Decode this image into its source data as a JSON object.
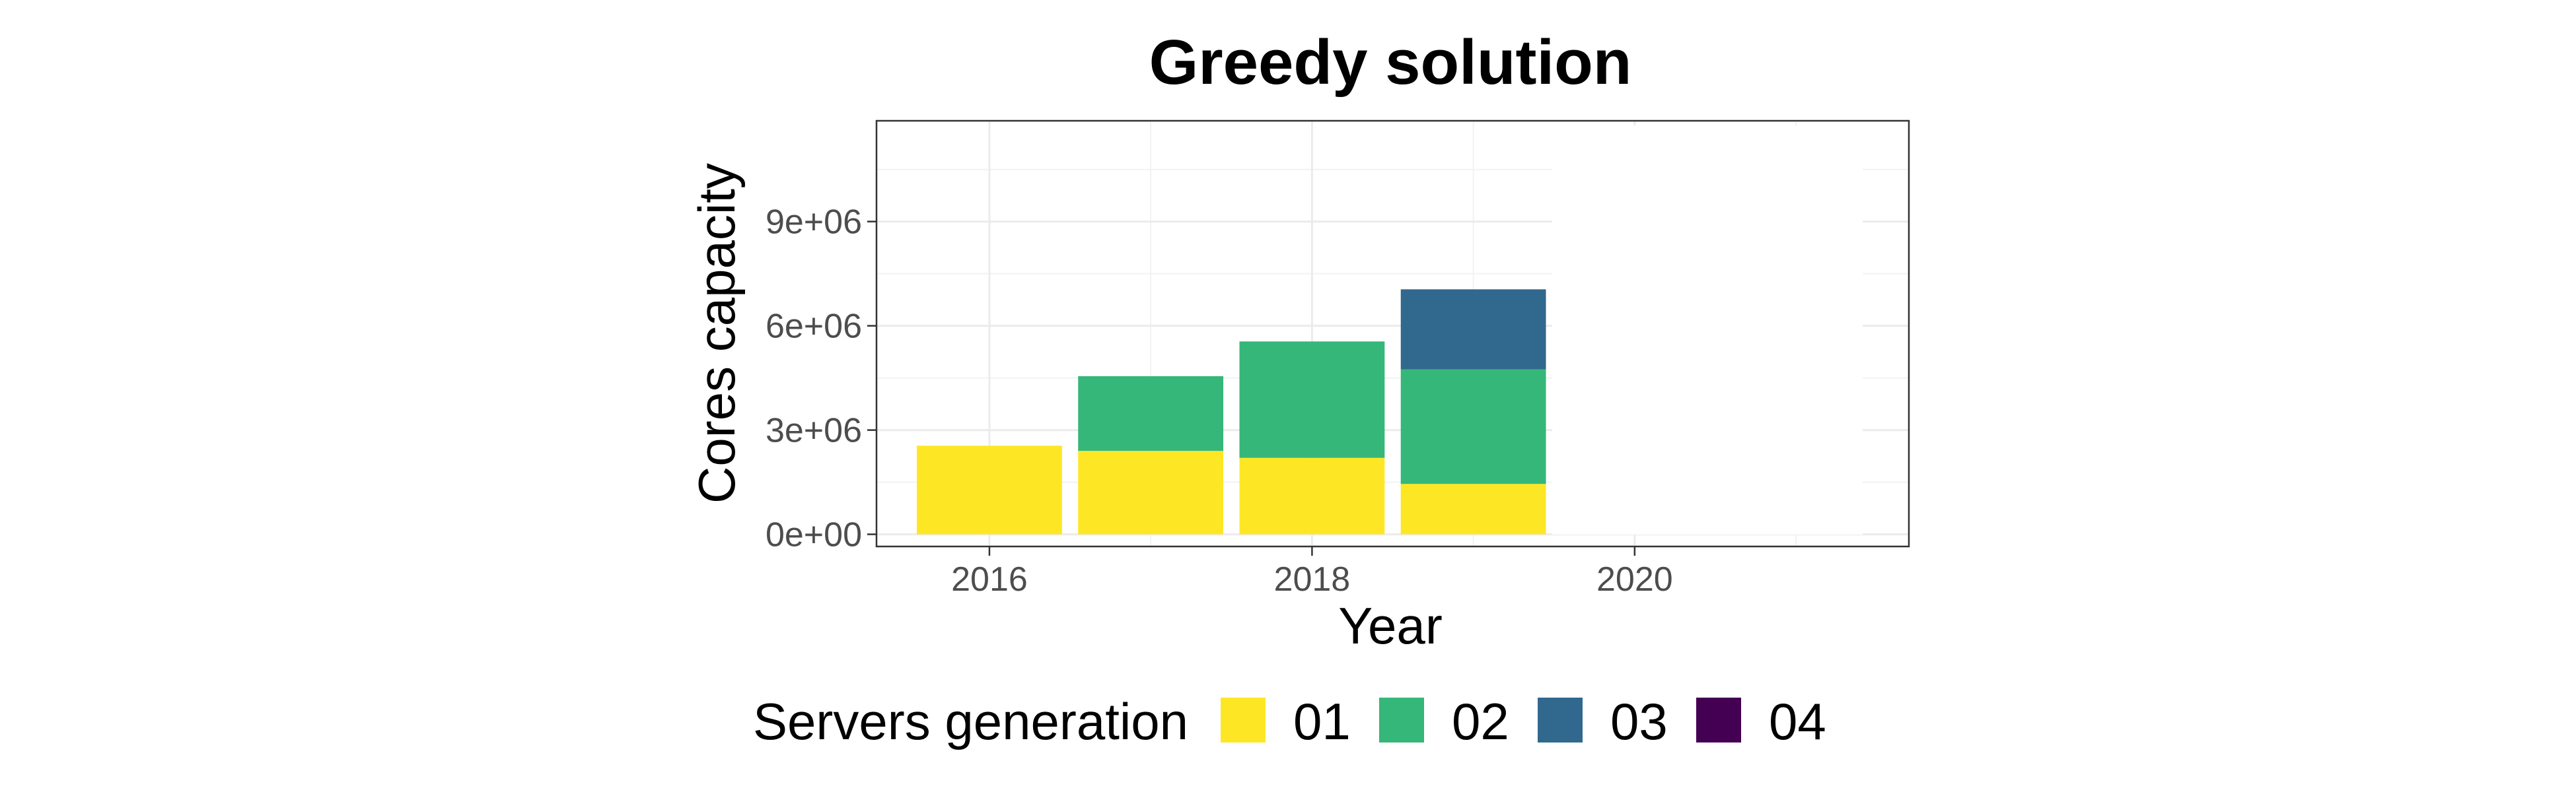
{
  "chart_data": {
    "type": "bar",
    "stacked": true,
    "title": "Greedy solution",
    "xlabel": "Year",
    "ylabel": "Cores capacity",
    "x": [
      2016,
      2017,
      2018,
      2019
    ],
    "xlim": [
      2015.3,
      2021.7
    ],
    "ylim": [
      -350000,
      11900000
    ],
    "x_ticks": [
      2016,
      2018,
      2020
    ],
    "x_tick_labels": [
      "2016",
      "2018",
      "2020"
    ],
    "y_ticks": [
      0,
      3000000,
      6000000,
      9000000
    ],
    "y_tick_labels": [
      "0e+00",
      "3e+06",
      "6e+06",
      "9e+06"
    ],
    "grid": true,
    "legend_position": "bottom",
    "legend_title": "Servers generation",
    "series": [
      {
        "name": "01",
        "color": "#FDE725",
        "values": [
          2550000,
          2400000,
          2200000,
          1450000
        ]
      },
      {
        "name": "02",
        "color": "#35B779",
        "values": [
          0,
          2150000,
          3350000,
          3300000
        ]
      },
      {
        "name": "03",
        "color": "#31688E",
        "values": [
          0,
          0,
          0,
          2300000
        ]
      },
      {
        "name": "04",
        "color": "#440154",
        "values": [
          0,
          0,
          0,
          0
        ]
      }
    ]
  }
}
